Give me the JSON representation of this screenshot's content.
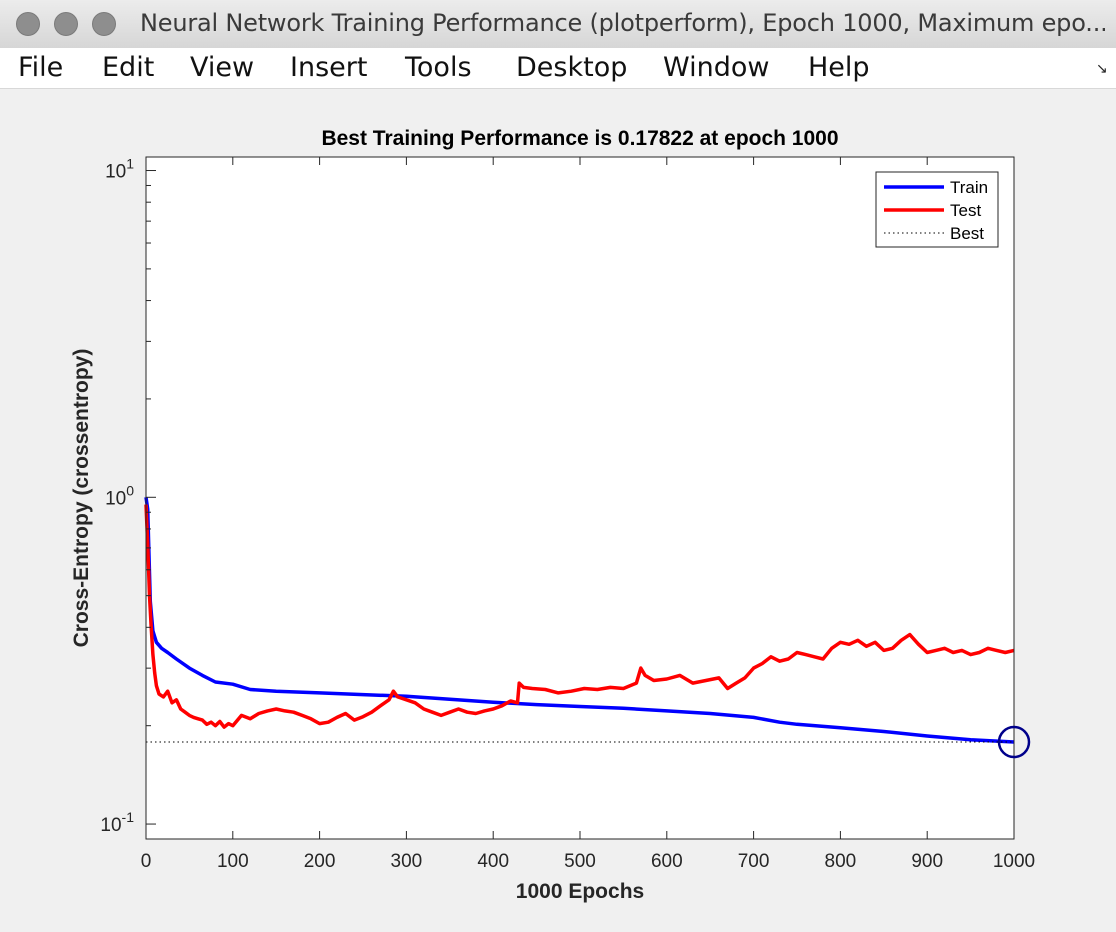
{
  "window": {
    "title": "Neural Network Training Performance (plotperform), Epoch 1000, Maximum epo...",
    "dock_icon": "undock-arrow-icon"
  },
  "menu": [
    "File",
    "Edit",
    "View",
    "Insert",
    "Tools",
    "Desktop",
    "Window",
    "Help"
  ],
  "chart_data": {
    "type": "line",
    "title": "Best Training Performance is 0.17822 at epoch 1000",
    "xlabel": "1000 Epochs",
    "ylabel": "Cross-Entropy  (crossentropy)",
    "xlim": [
      0,
      1000
    ],
    "ylim": [
      0.09,
      11
    ],
    "yscale": "log",
    "xticks": [
      0,
      100,
      200,
      300,
      400,
      500,
      600,
      700,
      800,
      900,
      1000
    ],
    "yticks": [
      {
        "base": "10",
        "exp": "1",
        "value": 10
      },
      {
        "base": "10",
        "exp": "0",
        "value": 1
      },
      {
        "base": "10",
        "exp": "-1",
        "value": 0.1
      }
    ],
    "legend_position": "top-right",
    "best": {
      "epoch": 1000,
      "value": 0.17822
    },
    "series": [
      {
        "name": "Train",
        "color": "#0000ff",
        "style": "solid",
        "x": [
          0,
          2,
          5,
          8,
          12,
          18,
          25,
          35,
          50,
          65,
          80,
          100,
          120,
          150,
          200,
          250,
          300,
          350,
          400,
          450,
          500,
          550,
          600,
          650,
          700,
          730,
          750,
          800,
          850,
          900,
          950,
          1000
        ],
        "values": [
          1.0,
          0.92,
          0.48,
          0.39,
          0.36,
          0.345,
          0.335,
          0.32,
          0.3,
          0.285,
          0.272,
          0.268,
          0.258,
          0.255,
          0.252,
          0.249,
          0.246,
          0.241,
          0.236,
          0.232,
          0.229,
          0.226,
          0.222,
          0.218,
          0.212,
          0.205,
          0.202,
          0.197,
          0.192,
          0.186,
          0.181,
          0.17822
        ]
      },
      {
        "name": "Test",
        "color": "#ff0000",
        "style": "solid",
        "x": [
          0,
          2,
          4,
          6,
          8,
          10,
          12,
          15,
          20,
          25,
          30,
          35,
          40,
          45,
          50,
          55,
          60,
          65,
          70,
          75,
          80,
          85,
          90,
          95,
          100,
          110,
          120,
          130,
          140,
          150,
          160,
          170,
          180,
          190,
          200,
          210,
          220,
          230,
          240,
          250,
          260,
          270,
          280,
          285,
          290,
          300,
          310,
          320,
          330,
          340,
          350,
          360,
          370,
          380,
          390,
          400,
          410,
          420,
          428,
          430,
          435,
          445,
          460,
          475,
          490,
          505,
          520,
          535,
          550,
          565,
          570,
          575,
          585,
          600,
          615,
          630,
          645,
          660,
          670,
          680,
          690,
          700,
          710,
          720,
          730,
          740,
          750,
          760,
          770,
          780,
          790,
          800,
          810,
          820,
          830,
          840,
          850,
          860,
          870,
          880,
          890,
          900,
          910,
          920,
          930,
          940,
          950,
          960,
          970,
          980,
          990,
          1000
        ],
        "values": [
          0.95,
          0.72,
          0.5,
          0.4,
          0.33,
          0.29,
          0.265,
          0.25,
          0.245,
          0.255,
          0.235,
          0.24,
          0.225,
          0.22,
          0.215,
          0.212,
          0.21,
          0.208,
          0.202,
          0.205,
          0.2,
          0.206,
          0.198,
          0.203,
          0.2,
          0.215,
          0.21,
          0.218,
          0.222,
          0.225,
          0.222,
          0.22,
          0.215,
          0.21,
          0.203,
          0.205,
          0.212,
          0.218,
          0.208,
          0.213,
          0.22,
          0.23,
          0.24,
          0.255,
          0.245,
          0.24,
          0.235,
          0.225,
          0.22,
          0.215,
          0.22,
          0.225,
          0.22,
          0.218,
          0.222,
          0.225,
          0.23,
          0.238,
          0.235,
          0.27,
          0.262,
          0.26,
          0.258,
          0.252,
          0.255,
          0.26,
          0.258,
          0.262,
          0.26,
          0.27,
          0.3,
          0.285,
          0.275,
          0.278,
          0.285,
          0.27,
          0.275,
          0.28,
          0.26,
          0.27,
          0.28,
          0.3,
          0.31,
          0.325,
          0.315,
          0.32,
          0.335,
          0.33,
          0.325,
          0.32,
          0.345,
          0.36,
          0.355,
          0.365,
          0.35,
          0.36,
          0.34,
          0.345,
          0.365,
          0.38,
          0.355,
          0.335,
          0.34,
          0.345,
          0.335,
          0.34,
          0.33,
          0.335,
          0.345,
          0.34,
          0.335,
          0.34
        ]
      },
      {
        "name": "Best",
        "color": "#000000",
        "style": "dotted",
        "x": [
          0,
          1000
        ],
        "values": [
          0.17822,
          0.17822
        ]
      }
    ]
  }
}
